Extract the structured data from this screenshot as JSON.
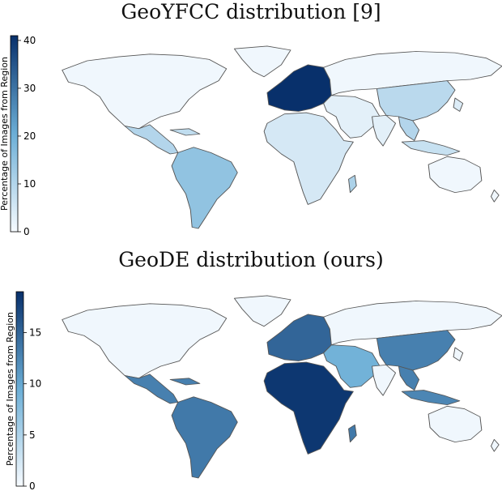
{
  "panels": [
    {
      "title": "GeoYFCC distribution [9]",
      "colorbar": {
        "label": "Percentage of Images from Region",
        "ticks": [
          "0",
          "10",
          "20",
          "30",
          "40"
        ],
        "max": 41
      },
      "regions": {
        "north_america": 1,
        "greenland": 1,
        "central_america": 10,
        "caribbean": 8,
        "south_america": 15,
        "europe": 41,
        "africa": 5,
        "west_asia": 3,
        "east_asia": 9,
        "southeast_asia": 10,
        "indonesia": 7,
        "russia": 1,
        "australia": 1,
        "madagascar": 11,
        "india": 3,
        "japan": 4,
        "new_zealand": 1
      }
    },
    {
      "title": "GeoDE distribution (ours)",
      "colorbar": {
        "label": "Percentage of Images from Region",
        "ticks": [
          "0",
          "5",
          "10",
          "15"
        ],
        "max": 19
      },
      "regions": {
        "north_america": 0.5,
        "greenland": 0.5,
        "central_america": 13,
        "caribbean": 13,
        "south_america": 13.5,
        "europe": 15,
        "africa": 18.5,
        "west_asia": 9,
        "east_asia": 13,
        "southeast_asia": 13,
        "indonesia": 12.5,
        "russia": 0.5,
        "australia": 0.5,
        "madagascar": 13.5,
        "india": 0.5,
        "japan": 0.5,
        "new_zealand": 0.5
      }
    }
  ],
  "colors": {
    "low": "#f7fbff",
    "mid": "#6baed6",
    "high": "#08306b",
    "border": "#555555"
  }
}
